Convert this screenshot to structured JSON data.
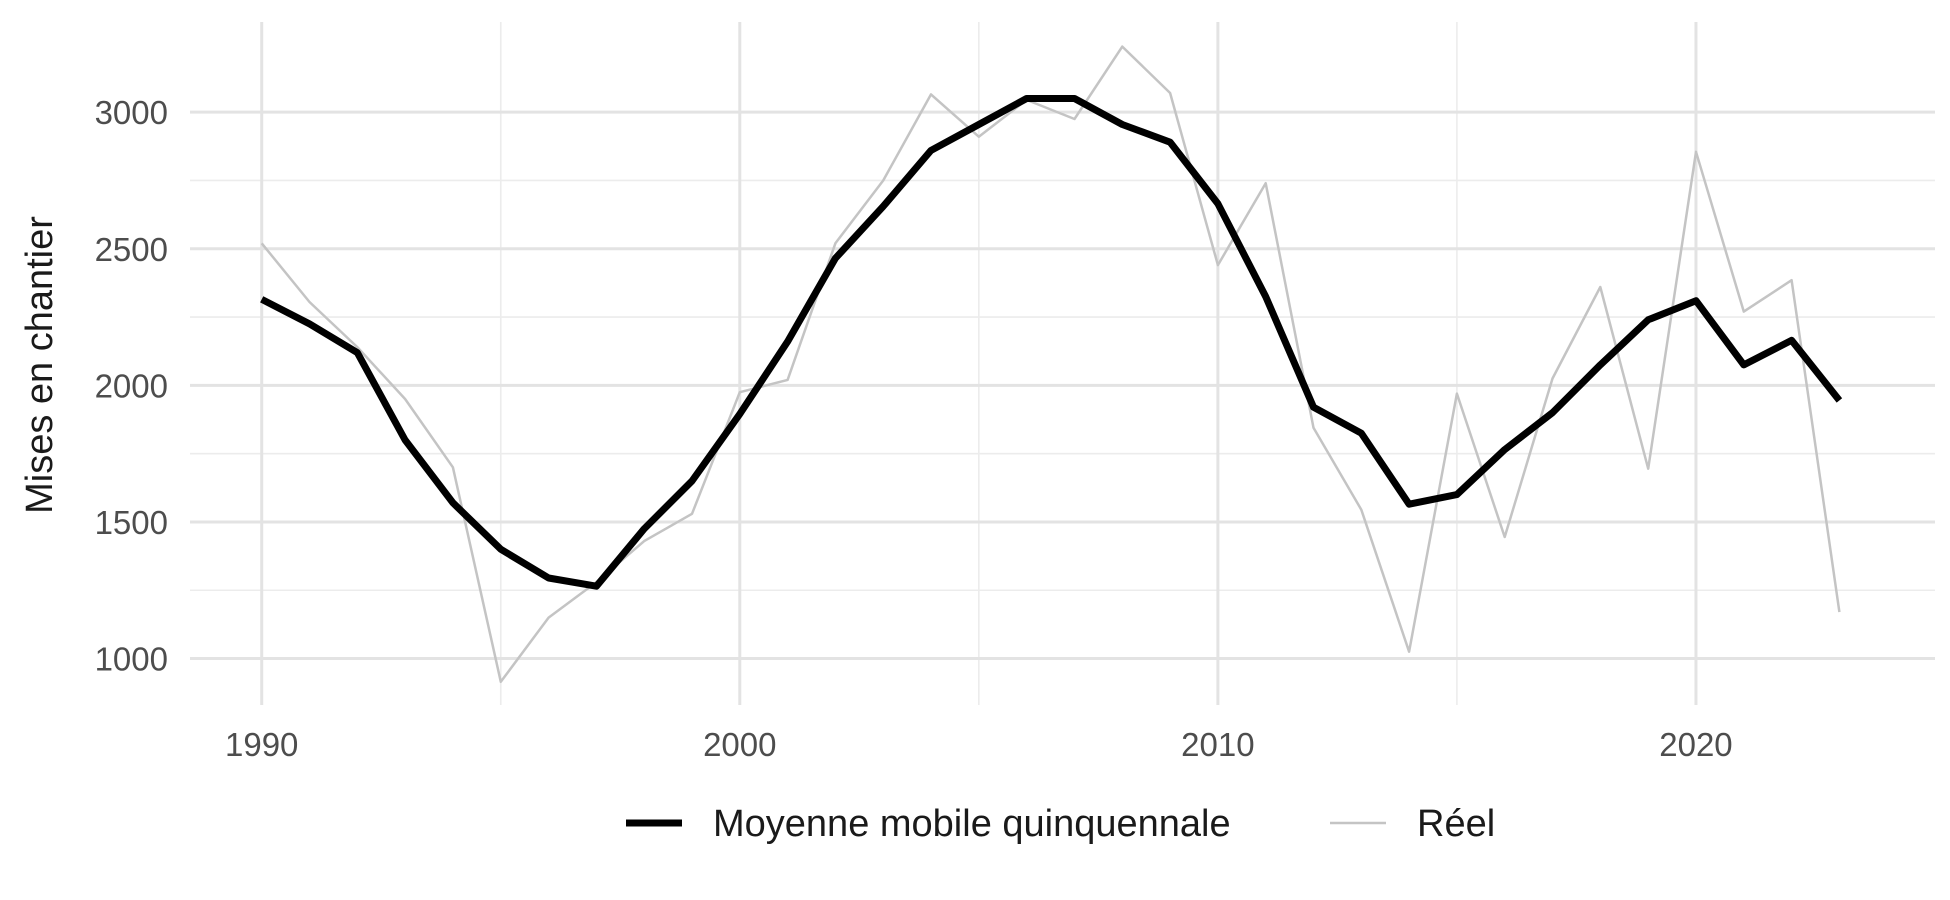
{
  "chart_data": {
    "type": "line",
    "title": "",
    "xlabel": "",
    "ylabel": "Mises en chantier",
    "xlim": [
      1988.5,
      2025
    ],
    "ylim": [
      830,
      3330
    ],
    "x_ticks": [
      1990,
      2000,
      2010,
      2020
    ],
    "y_ticks": [
      1000,
      1500,
      2000,
      2500,
      3000
    ],
    "x_tick_labels": [
      "1990",
      "2000",
      "2010",
      "2020"
    ],
    "y_tick_labels": [
      "1000",
      "1500",
      "2000",
      "2500",
      "3000"
    ],
    "grid": true,
    "legend_position": "bottom",
    "x": [
      1990,
      1991,
      1992,
      1993,
      1994,
      1995,
      1996,
      1997,
      1998,
      1999,
      2000,
      2001,
      2002,
      2003,
      2004,
      2005,
      2006,
      2007,
      2008,
      2009,
      2010,
      2011,
      2012,
      2013,
      2014,
      2015,
      2016,
      2017,
      2018,
      2019,
      2020,
      2021,
      2022,
      2023
    ],
    "series": [
      {
        "name": "Moyenne mobile quinquennale",
        "color": "#000000",
        "values": [
          2315,
          2225,
          2120,
          1800,
          1570,
          1400,
          1295,
          1265,
          1475,
          1650,
          1895,
          2160,
          2465,
          2655,
          2860,
          2955,
          3050,
          3050,
          2955,
          2890,
          2665,
          2325,
          1920,
          1825,
          1565,
          1600,
          1765,
          1900,
          2075,
          2240,
          2310,
          2075,
          2165,
          1945
        ]
      },
      {
        "name": "Réel",
        "color": "#c4c4c4",
        "values": [
          2520,
          2305,
          2140,
          1950,
          1700,
          915,
          1150,
          1280,
          1430,
          1530,
          1975,
          2020,
          2520,
          2750,
          3065,
          2910,
          3045,
          2975,
          3240,
          3070,
          2440,
          2740,
          1845,
          1545,
          1025,
          1970,
          1445,
          2025,
          2360,
          1695,
          2855,
          2270,
          2385,
          1170
        ]
      }
    ]
  }
}
